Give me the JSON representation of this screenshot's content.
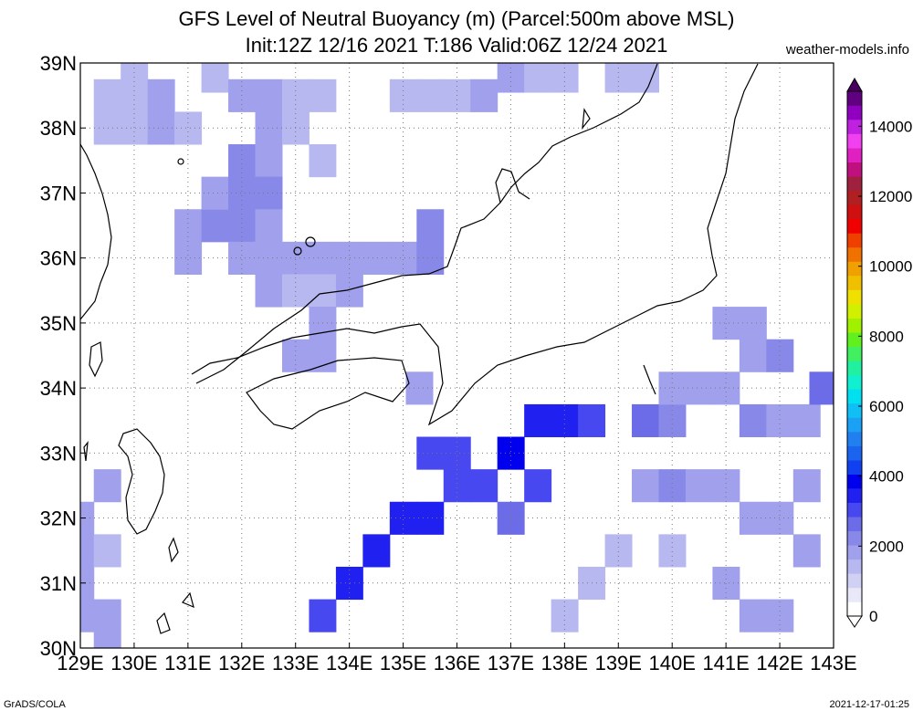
{
  "chart_data": {
    "type": "heatmap",
    "title": "GFS Level of Neutral Buoyancy (m) (Parcel:500m above MSL)",
    "subtitle": "Init:12Z 12/16 2021 T:186 Valid:06Z 12/24 2021",
    "site": "weather-models.info",
    "credit": "GrADS/COLA",
    "timestamp": "2021-12-17-01:25",
    "xlim": [
      129,
      143
    ],
    "ylim": [
      30,
      39
    ],
    "x_ticks": [
      "129E",
      "130E",
      "131E",
      "132E",
      "133E",
      "134E",
      "135E",
      "136E",
      "137E",
      "138E",
      "139E",
      "140E",
      "141E",
      "142E",
      "143E"
    ],
    "y_ticks": [
      "30N",
      "31N",
      "32N",
      "33N",
      "34N",
      "35N",
      "36N",
      "37N",
      "38N",
      "39N"
    ],
    "grid": true,
    "colorbar": {
      "labels": [
        "0",
        "2000",
        "4000",
        "6000",
        "8000",
        "10000",
        "12000",
        "14000"
      ],
      "max": 15000,
      "colors": [
        "#ffffff",
        "#e8e8f8",
        "#d0d0f4",
        "#b8b8f0",
        "#a0a0ec",
        "#8888e8",
        "#6c6ce8",
        "#4848f0",
        "#2020f0",
        "#0000ee",
        "#1040f0",
        "#1a64f0",
        "#2080f0",
        "#1aa0f4",
        "#10c0f4",
        "#00e0f0",
        "#10f0d0",
        "#20f0a0",
        "#40f060",
        "#60f020",
        "#a0f000",
        "#d0f000",
        "#f0e000",
        "#f0c000",
        "#f0a000",
        "#f07000",
        "#f04000",
        "#f00000",
        "#d01010",
        "#b02020",
        "#a02040",
        "#c01080",
        "#e020c0",
        "#f040f0",
        "#c020e0",
        "#9000c0",
        "#600080"
      ]
    },
    "grid_data": [
      {
        "lon": 129.0,
        "lat": 32.0,
        "v": 1800
      },
      {
        "lon": 129.0,
        "lat": 31.5,
        "v": 1800
      },
      {
        "lon": 129.0,
        "lat": 31.0,
        "v": 2000
      },
      {
        "lon": 129.0,
        "lat": 30.5,
        "v": 1900
      },
      {
        "lon": 129.5,
        "lat": 31.5,
        "v": 1600
      },
      {
        "lon": 129.5,
        "lat": 30.5,
        "v": 1700
      },
      {
        "lon": 129.5,
        "lat": 30.0,
        "v": 1800
      },
      {
        "lon": 129.5,
        "lat": 32.5,
        "v": 1900
      },
      {
        "lon": 129.5,
        "lat": 38.5,
        "v": 1500
      },
      {
        "lon": 129.5,
        "lat": 38.0,
        "v": 1500
      },
      {
        "lon": 130.0,
        "lat": 38.5,
        "v": 1600
      },
      {
        "lon": 130.0,
        "lat": 38.0,
        "v": 1600
      },
      {
        "lon": 130.0,
        "lat": 38.8,
        "v": 1500
      },
      {
        "lon": 130.5,
        "lat": 38.5,
        "v": 1700
      },
      {
        "lon": 130.5,
        "lat": 38.0,
        "v": 1800
      },
      {
        "lon": 131.0,
        "lat": 38.0,
        "v": 1600
      },
      {
        "lon": 131.5,
        "lat": 38.8,
        "v": 1500
      },
      {
        "lon": 131.0,
        "lat": 36.5,
        "v": 1800
      },
      {
        "lon": 131.0,
        "lat": 36.0,
        "v": 1900
      },
      {
        "lon": 131.5,
        "lat": 36.5,
        "v": 2100
      },
      {
        "lon": 131.5,
        "lat": 37.0,
        "v": 2000
      },
      {
        "lon": 132.0,
        "lat": 36.5,
        "v": 2300
      },
      {
        "lon": 132.0,
        "lat": 36.0,
        "v": 2000
      },
      {
        "lon": 132.0,
        "lat": 37.0,
        "v": 2200
      },
      {
        "lon": 132.0,
        "lat": 37.5,
        "v": 2100
      },
      {
        "lon": 132.0,
        "lat": 38.5,
        "v": 1700
      },
      {
        "lon": 132.5,
        "lat": 38.5,
        "v": 1800
      },
      {
        "lon": 132.5,
        "lat": 38.0,
        "v": 2000
      },
      {
        "lon": 132.5,
        "lat": 37.5,
        "v": 2000
      },
      {
        "lon": 132.5,
        "lat": 37.0,
        "v": 2100
      },
      {
        "lon": 132.5,
        "lat": 36.5,
        "v": 2000
      },
      {
        "lon": 132.5,
        "lat": 36.0,
        "v": 1800
      },
      {
        "lon": 132.5,
        "lat": 35.5,
        "v": 1700
      },
      {
        "lon": 133.0,
        "lat": 38.5,
        "v": 1600
      },
      {
        "lon": 133.0,
        "lat": 38.0,
        "v": 1500
      },
      {
        "lon": 133.0,
        "lat": 36.0,
        "v": 1700
      },
      {
        "lon": 133.0,
        "lat": 35.5,
        "v": 1600
      },
      {
        "lon": 133.5,
        "lat": 38.5,
        "v": 1500
      },
      {
        "lon": 133.5,
        "lat": 37.5,
        "v": 1500
      },
      {
        "lon": 133.5,
        "lat": 36.0,
        "v": 1800
      },
      {
        "lon": 133.5,
        "lat": 35.5,
        "v": 1600
      },
      {
        "lon": 134.0,
        "lat": 36.0,
        "v": 1800
      },
      {
        "lon": 134.0,
        "lat": 35.5,
        "v": 1700
      },
      {
        "lon": 134.5,
        "lat": 36.0,
        "v": 1700
      },
      {
        "lon": 135.0,
        "lat": 36.0,
        "v": 1900
      },
      {
        "lon": 135.5,
        "lat": 36.5,
        "v": 2400
      },
      {
        "lon": 135.5,
        "lat": 36.0,
        "v": 2200
      },
      {
        "lon": 133.5,
        "lat": 35.0,
        "v": 1900
      },
      {
        "lon": 133.5,
        "lat": 34.5,
        "v": 2000
      },
      {
        "lon": 133.0,
        "lat": 34.5,
        "v": 1800
      },
      {
        "lon": 135.3,
        "lat": 34.0,
        "v": 2000
      },
      {
        "lon": 135.0,
        "lat": 38.5,
        "v": 1500
      },
      {
        "lon": 135.5,
        "lat": 38.5,
        "v": 1500
      },
      {
        "lon": 136.0,
        "lat": 38.5,
        "v": 1600
      },
      {
        "lon": 136.5,
        "lat": 38.5,
        "v": 1700
      },
      {
        "lon": 137.0,
        "lat": 38.8,
        "v": 1800
      },
      {
        "lon": 137.5,
        "lat": 38.8,
        "v": 1600
      },
      {
        "lon": 138.0,
        "lat": 38.8,
        "v": 1500
      },
      {
        "lon": 139.0,
        "lat": 38.8,
        "v": 1500
      },
      {
        "lon": 139.5,
        "lat": 38.8,
        "v": 1500
      },
      {
        "lon": 135.5,
        "lat": 33.0,
        "v": 3200
      },
      {
        "lon": 136.0,
        "lat": 33.0,
        "v": 3000
      },
      {
        "lon": 136.5,
        "lat": 32.5,
        "v": 3100
      },
      {
        "lon": 136.0,
        "lat": 32.5,
        "v": 3200
      },
      {
        "lon": 135.5,
        "lat": 32.0,
        "v": 3300
      },
      {
        "lon": 135.0,
        "lat": 32.0,
        "v": 3500
      },
      {
        "lon": 134.5,
        "lat": 31.5,
        "v": 3400
      },
      {
        "lon": 134.0,
        "lat": 31.0,
        "v": 3500
      },
      {
        "lon": 133.5,
        "lat": 30.5,
        "v": 3000
      },
      {
        "lon": 137.0,
        "lat": 33.0,
        "v": 3700
      },
      {
        "lon": 137.5,
        "lat": 33.5,
        "v": 3600
      },
      {
        "lon": 138.0,
        "lat": 33.5,
        "v": 3400
      },
      {
        "lon": 138.5,
        "lat": 33.5,
        "v": 3100
      },
      {
        "lon": 137.5,
        "lat": 32.5,
        "v": 3000
      },
      {
        "lon": 137.0,
        "lat": 32.0,
        "v": 2700
      },
      {
        "lon": 139.5,
        "lat": 33.5,
        "v": 2600
      },
      {
        "lon": 140.0,
        "lat": 33.5,
        "v": 2300
      },
      {
        "lon": 140.0,
        "lat": 34.0,
        "v": 2000
      },
      {
        "lon": 139.5,
        "lat": 32.5,
        "v": 2000
      },
      {
        "lon": 140.0,
        "lat": 32.5,
        "v": 2100
      },
      {
        "lon": 140.5,
        "lat": 32.5,
        "v": 2000
      },
      {
        "lon": 141.0,
        "lat": 32.5,
        "v": 2000
      },
      {
        "lon": 141.5,
        "lat": 32.0,
        "v": 1900
      },
      {
        "lon": 142.0,
        "lat": 32.0,
        "v": 2000
      },
      {
        "lon": 142.5,
        "lat": 32.5,
        "v": 1900
      },
      {
        "lon": 142.5,
        "lat": 31.5,
        "v": 1800
      },
      {
        "lon": 141.0,
        "lat": 31.0,
        "v": 1700
      },
      {
        "lon": 141.5,
        "lat": 30.5,
        "v": 1800
      },
      {
        "lon": 142.0,
        "lat": 30.5,
        "v": 1700
      },
      {
        "lon": 140.0,
        "lat": 31.5,
        "v": 1600
      },
      {
        "lon": 139.0,
        "lat": 31.5,
        "v": 1500
      },
      {
        "lon": 141.5,
        "lat": 33.5,
        "v": 2200
      },
      {
        "lon": 142.0,
        "lat": 33.5,
        "v": 2000
      },
      {
        "lon": 142.5,
        "lat": 33.5,
        "v": 1900
      },
      {
        "lon": 142.8,
        "lat": 34.0,
        "v": 2800
      },
      {
        "lon": 141.5,
        "lat": 34.5,
        "v": 1900
      },
      {
        "lon": 142.0,
        "lat": 34.5,
        "v": 2200
      },
      {
        "lon": 141.0,
        "lat": 35.0,
        "v": 1700
      },
      {
        "lon": 141.5,
        "lat": 35.0,
        "v": 1700
      },
      {
        "lon": 140.5,
        "lat": 34.0,
        "v": 1800
      },
      {
        "lon": 141.0,
        "lat": 34.0,
        "v": 1700
      },
      {
        "lon": 138.5,
        "lat": 31.0,
        "v": 1600
      },
      {
        "lon": 138.0,
        "lat": 30.5,
        "v": 1600
      }
    ]
  }
}
